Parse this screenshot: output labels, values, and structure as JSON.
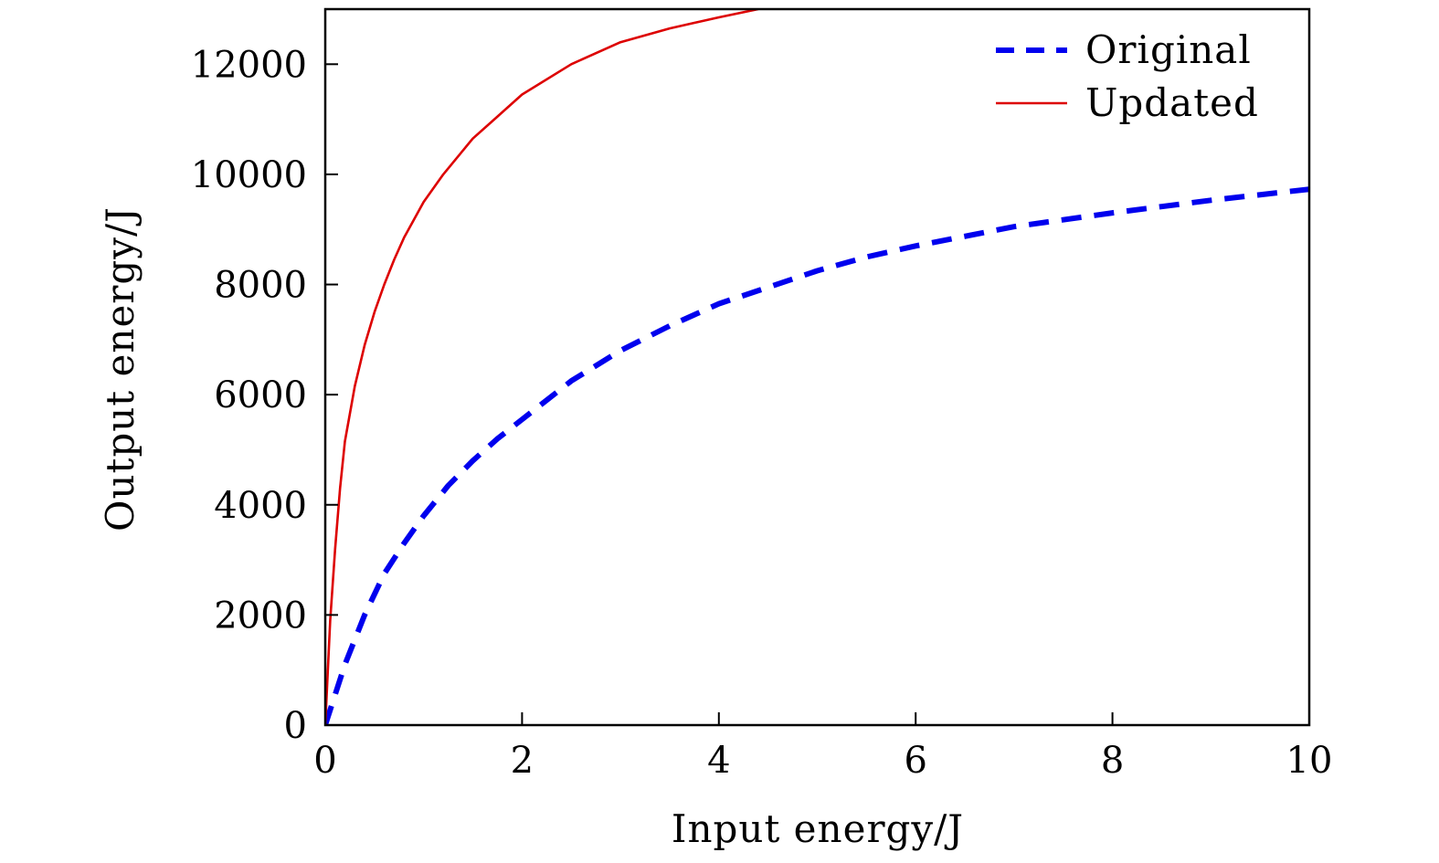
{
  "chart_data": {
    "type": "line",
    "xlabel": "Input energy/J",
    "ylabel": "Output energy/J",
    "xlim": [
      0,
      10
    ],
    "ylim": [
      0,
      13000
    ],
    "xticks": [
      0,
      2,
      4,
      6,
      8,
      10
    ],
    "yticks": [
      0,
      2000,
      4000,
      6000,
      8000,
      10000,
      12000
    ],
    "xtick_labels": [
      "0",
      "2",
      "4",
      "6",
      "8",
      "10"
    ],
    "ytick_labels": [
      "0",
      "2000",
      "4000",
      "6000",
      "8000",
      "10000",
      "12000"
    ],
    "grid": false,
    "legend_position": "top-right",
    "series": [
      {
        "name": "Original",
        "color": "#0000ee",
        "style": "dashed",
        "x": [
          0,
          0.2,
          0.4,
          0.6,
          0.8,
          1,
          1.25,
          1.5,
          1.75,
          2,
          2.5,
          3,
          3.5,
          4,
          4.5,
          5,
          5.5,
          6,
          7,
          8,
          9,
          10
        ],
        "y": [
          0,
          1100,
          2000,
          2750,
          3300,
          3800,
          4350,
          4800,
          5200,
          5550,
          6250,
          6800,
          7250,
          7650,
          7950,
          8250,
          8500,
          8700,
          9050,
          9300,
          9530,
          9730
        ]
      },
      {
        "name": "Updated",
        "color": "#dd0000",
        "style": "solid",
        "x": [
          0,
          0.05,
          0.1,
          0.15,
          0.2,
          0.3,
          0.4,
          0.5,
          0.6,
          0.7,
          0.8,
          1,
          1.2,
          1.5,
          1.75,
          2,
          2.5,
          3,
          3.5,
          4,
          4.4
        ],
        "y": [
          0,
          1900,
          3200,
          4300,
          5150,
          6150,
          6900,
          7500,
          8000,
          8450,
          8850,
          9500,
          10000,
          10650,
          11050,
          11450,
          12000,
          12400,
          12650,
          12850,
          13000
        ]
      }
    ]
  }
}
